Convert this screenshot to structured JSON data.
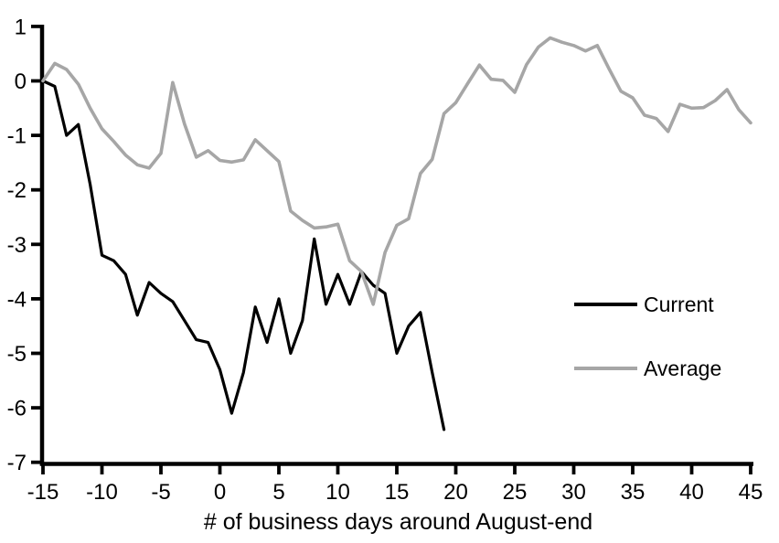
{
  "chart_data": {
    "type": "line",
    "title": "",
    "xlabel": "# of business days around August-end",
    "ylabel": "",
    "xlim": [
      -15,
      45
    ],
    "ylim": [
      -7,
      1
    ],
    "x_ticks": [
      -15,
      -10,
      -5,
      0,
      5,
      10,
      15,
      20,
      25,
      30,
      35,
      40,
      45
    ],
    "y_ticks": [
      1,
      0,
      -1,
      -2,
      -3,
      -4,
      -5,
      -6,
      -7
    ],
    "grid": false,
    "legend_position": "middle-right",
    "x_step": 1,
    "series": [
      {
        "name": "Current",
        "color": "#000000",
        "stroke_width": 3.2,
        "x_start": -15,
        "x_end": 19,
        "values": [
          0,
          -0.1,
          -1.0,
          -0.8,
          -1.9,
          -3.2,
          -3.3,
          -3.55,
          -4.3,
          -3.7,
          -3.9,
          -4.05,
          -4.4,
          -4.75,
          -4.8,
          -5.3,
          -6.1,
          -5.35,
          -4.15,
          -4.8,
          -4.0,
          -5.0,
          -4.4,
          -2.9,
          -4.1,
          -3.55,
          -4.1,
          -3.5,
          -3.75,
          -3.9,
          -5.0,
          -4.5,
          -4.25,
          -5.35,
          -6.4
        ]
      },
      {
        "name": "Average",
        "color": "#a6a6a6",
        "stroke_width": 3.6,
        "x_start": -15,
        "x_end": 45,
        "values": [
          0,
          0.32,
          0.21,
          -0.06,
          -0.5,
          -0.88,
          -1.11,
          -1.36,
          -1.54,
          -1.6,
          -1.33,
          -0.03,
          -0.79,
          -1.4,
          -1.28,
          -1.46,
          -1.49,
          -1.45,
          -1.08,
          -1.28,
          -1.48,
          -2.39,
          -2.56,
          -2.7,
          -2.68,
          -2.63,
          -3.3,
          -3.5,
          -4.1,
          -3.15,
          -2.65,
          -2.53,
          -1.7,
          -1.44,
          -0.6,
          -0.4,
          -0.05,
          0.29,
          0.03,
          0.01,
          -0.21,
          0.3,
          0.62,
          0.79,
          0.71,
          0.65,
          0.55,
          0.65,
          0.22,
          -0.19,
          -0.31,
          -0.63,
          -0.69,
          -0.93,
          -0.43,
          -0.5,
          -0.49,
          -0.36,
          -0.16,
          -0.53,
          -0.77
        ]
      }
    ]
  },
  "legend": {
    "items": [
      {
        "label": "Current",
        "color": "#000000"
      },
      {
        "label": "Average",
        "color": "#a6a6a6"
      }
    ]
  },
  "colors": {
    "background": "#ffffff",
    "axis": "#000000",
    "tick_label_color": "#000000"
  }
}
